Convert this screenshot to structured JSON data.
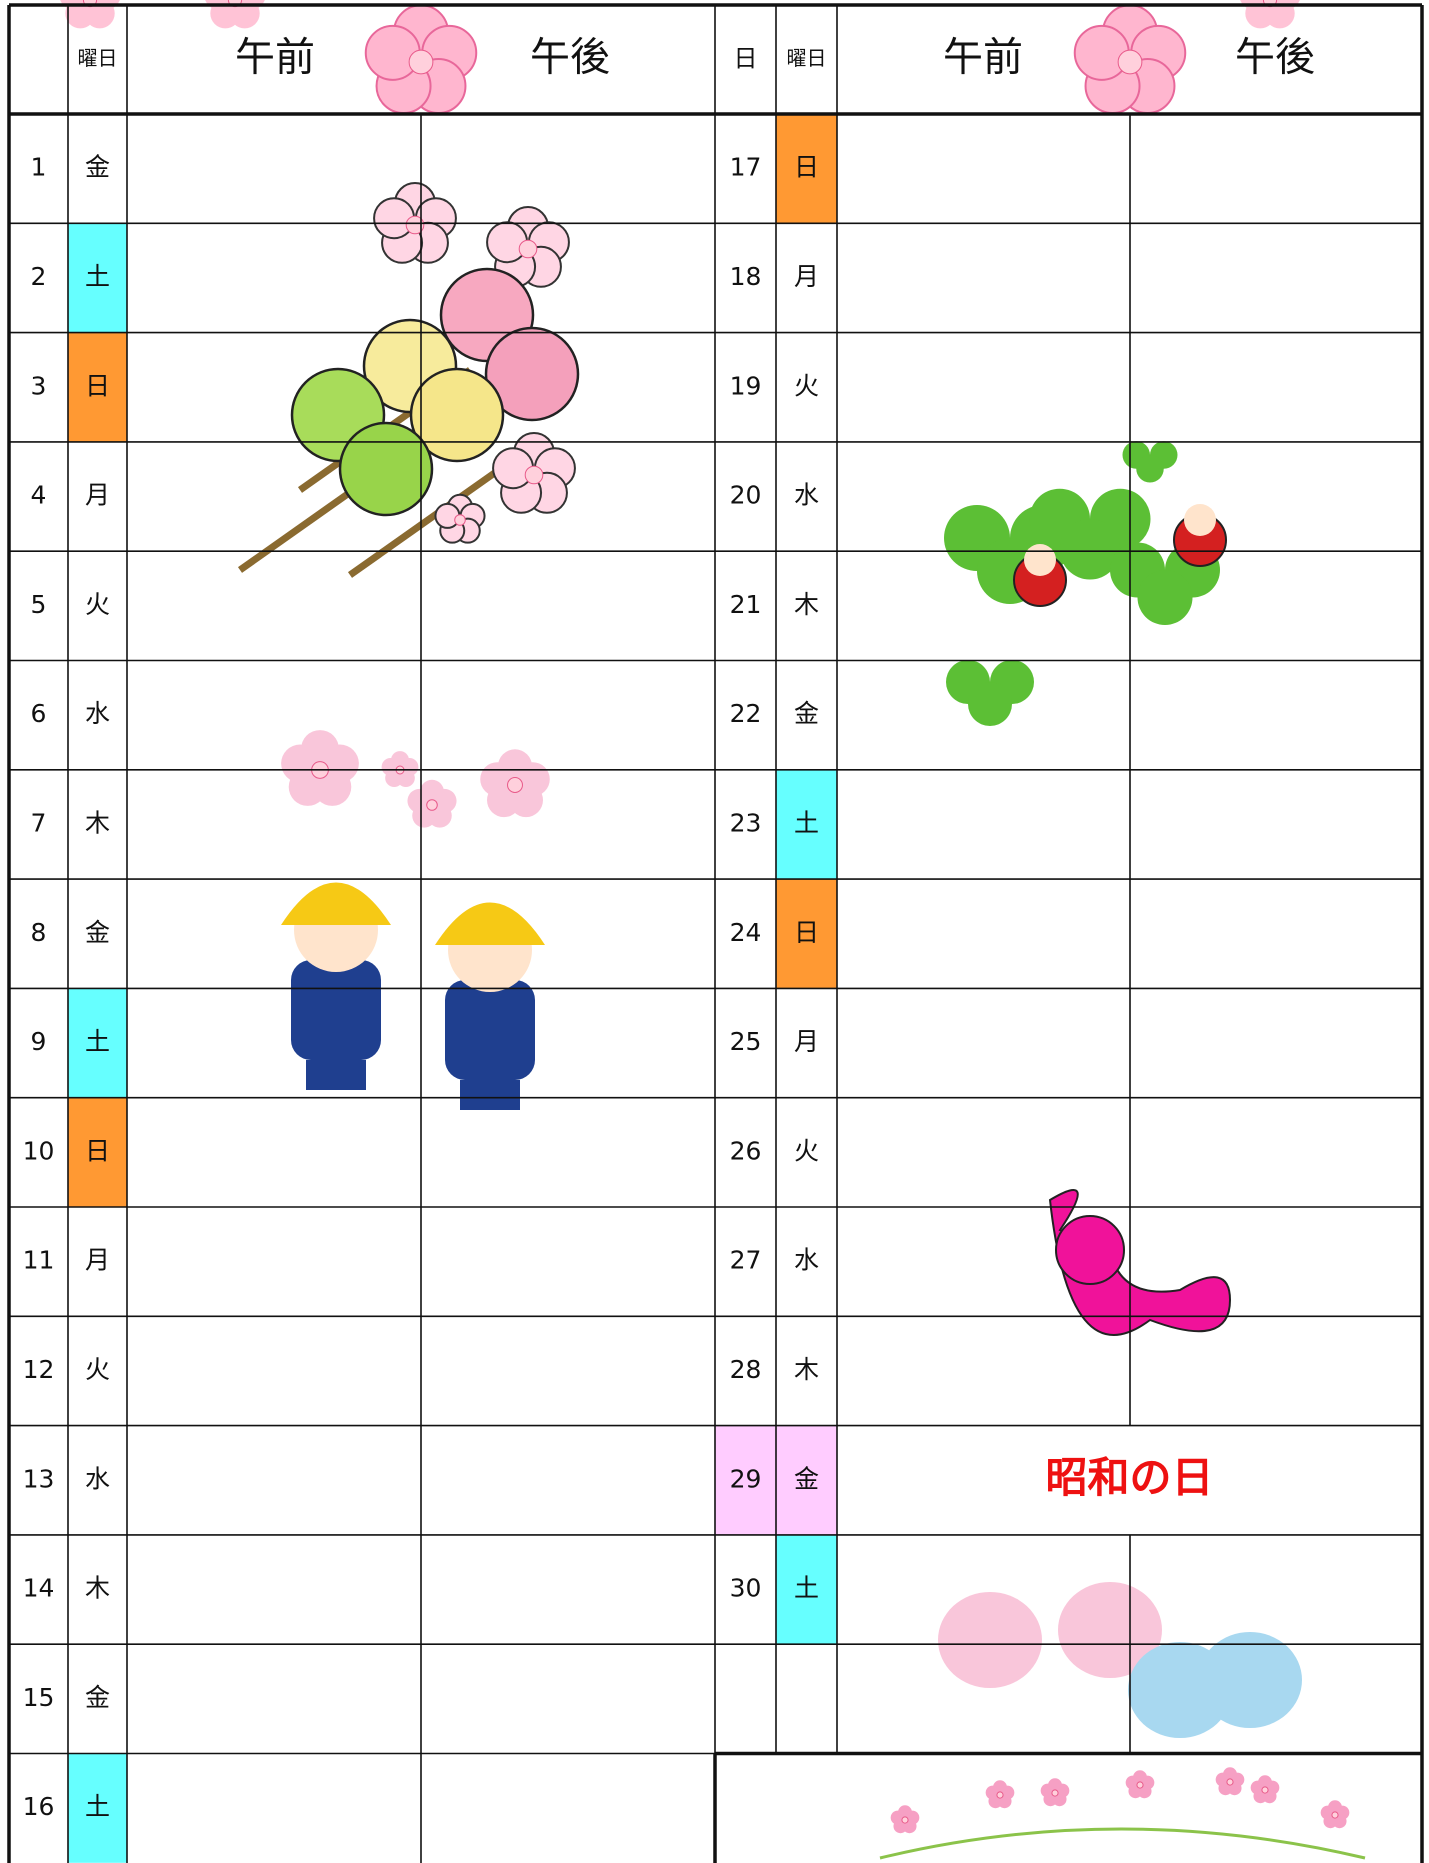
{
  "header": {
    "left": {
      "weekday": "曜日",
      "am": "午前",
      "pm": "午後"
    },
    "right": {
      "day": "日",
      "weekday": "曜日",
      "am": "午前",
      "pm": "午後"
    }
  },
  "left_rows": [
    {
      "day": 1,
      "weekday": "金"
    },
    {
      "day": 2,
      "weekday": "土"
    },
    {
      "day": 3,
      "weekday": "日"
    },
    {
      "day": 4,
      "weekday": "月"
    },
    {
      "day": 5,
      "weekday": "火"
    },
    {
      "day": 6,
      "weekday": "水"
    },
    {
      "day": 7,
      "weekday": "木"
    },
    {
      "day": 8,
      "weekday": "金"
    },
    {
      "day": 9,
      "weekday": "土"
    },
    {
      "day": 10,
      "weekday": "日"
    },
    {
      "day": 11,
      "weekday": "月"
    },
    {
      "day": 12,
      "weekday": "火"
    },
    {
      "day": 13,
      "weekday": "水"
    },
    {
      "day": 14,
      "weekday": "木"
    },
    {
      "day": 15,
      "weekday": "金"
    },
    {
      "day": 16,
      "weekday": "土"
    }
  ],
  "right_rows": [
    {
      "day": 17,
      "weekday": "日"
    },
    {
      "day": 18,
      "weekday": "月"
    },
    {
      "day": 19,
      "weekday": "火"
    },
    {
      "day": 20,
      "weekday": "水"
    },
    {
      "day": 21,
      "weekday": "木"
    },
    {
      "day": 22,
      "weekday": "金"
    },
    {
      "day": 23,
      "weekday": "土"
    },
    {
      "day": 24,
      "weekday": "日"
    },
    {
      "day": 25,
      "weekday": "月"
    },
    {
      "day": 26,
      "weekday": "火"
    },
    {
      "day": 27,
      "weekday": "水"
    },
    {
      "day": 28,
      "weekday": "木"
    },
    {
      "day": 29,
      "weekday": "金",
      "holiday": "昭和の日"
    },
    {
      "day": 30,
      "weekday": "土"
    }
  ],
  "weekday_colors": {
    "土": "#66ffff",
    "日": "#ff9933"
  },
  "holiday_color": "#ffccff",
  "holiday_text_color": "#ee1111"
}
